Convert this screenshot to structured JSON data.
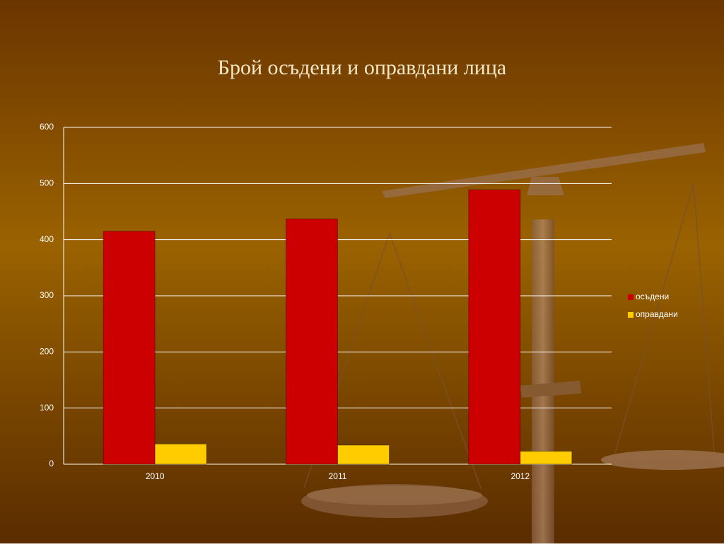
{
  "chart_data": {
    "type": "bar",
    "title": "Брой осъдени и оправдани лица",
    "categories": [
      "2010",
      "2011",
      "2012"
    ],
    "series": [
      {
        "name": "осъдени",
        "color": "#cc0000",
        "values": [
          415,
          437,
          489
        ]
      },
      {
        "name": "оправдани",
        "color": "#ffcc00",
        "values": [
          36,
          34,
          23
        ]
      }
    ],
    "ylim": [
      0,
      600
    ],
    "yticks": [
      0,
      100,
      200,
      300,
      400,
      500,
      600
    ],
    "grid": true,
    "legend": "right"
  }
}
